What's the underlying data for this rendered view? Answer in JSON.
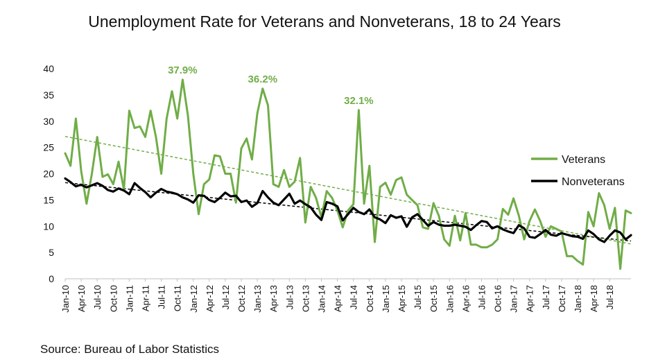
{
  "chart_data": {
    "type": "line",
    "title": "Unemployment Rate for Veterans and Nonveterans, 18 to 24 Years",
    "source": "Source: Bureau of Labor Statistics",
    "xlabel": "",
    "ylabel": "",
    "ylim": [
      0,
      40
    ],
    "yticks": [
      "0",
      "5",
      "10",
      "15",
      "20",
      "25",
      "30",
      "35",
      "40"
    ],
    "xtick_labels": [
      "Jan-10",
      "Apr-10",
      "Jul-10",
      "Oct-10",
      "Jan-11",
      "Apr-11",
      "Jul-11",
      "Oct-11",
      "Jan-12",
      "Apr-12",
      "Jul-12",
      "Oct-12",
      "Jan-13",
      "Apr-13",
      "Jul-13",
      "Oct-13",
      "Jan-14",
      "Apr-14",
      "Jul-14",
      "Oct-14",
      "Jan-15",
      "Apr-15",
      "Jul-15",
      "Oct-15",
      "Jan-16",
      "Apr-16",
      "Jul-16",
      "Oct-16",
      "Jan-17",
      "Apr-17",
      "Jul-17",
      "Oct-17",
      "Jan-18",
      "Apr-18",
      "Jul-18"
    ],
    "x_start": "Jan-10",
    "x_end": "Sep-18",
    "grid": false,
    "legend_position": "right",
    "series": [
      {
        "name": "Veterans",
        "color": "#70ad47",
        "trendline": true,
        "values": [
          23.9,
          21.5,
          30.5,
          20.5,
          14.3,
          20.0,
          27.0,
          19.4,
          19.9,
          18.0,
          22.3,
          17.0,
          32.0,
          28.7,
          29.0,
          27.0,
          32.0,
          27.0,
          20.0,
          30.5,
          35.7,
          30.5,
          37.9,
          31.0,
          20.0,
          12.3,
          18.0,
          18.9,
          23.5,
          23.3,
          20.0,
          20.0,
          14.5,
          24.8,
          26.7,
          22.7,
          31.5,
          36.2,
          33.0,
          18.0,
          17.5,
          20.7,
          17.5,
          18.5,
          23.0,
          10.7,
          17.5,
          15.4,
          11.7,
          16.7,
          15.4,
          13.0,
          9.8,
          13.0,
          14.2,
          32.1,
          14.3,
          21.5,
          7.0,
          17.5,
          18.3,
          16.0,
          18.8,
          19.3,
          16.0,
          15.0,
          14.0,
          9.8,
          9.5,
          14.4,
          12.0,
          7.5,
          6.3,
          12.0,
          7.3,
          12.5,
          6.5,
          6.5,
          6.0,
          6.0,
          6.5,
          7.5,
          13.3,
          12.2,
          15.3,
          12.0,
          7.5,
          11.0,
          13.2,
          11.0,
          8.0,
          10.0,
          9.5,
          9.0,
          4.3,
          4.3,
          3.4,
          2.7,
          12.7,
          10.0,
          16.3,
          14.0,
          9.5,
          13.5,
          1.9,
          13.0,
          12.5
        ]
      },
      {
        "name": "Nonveterans",
        "color": "#000000",
        "trendline": true,
        "values": [
          19.1,
          18.4,
          17.6,
          17.9,
          17.4,
          17.8,
          18.2,
          17.7,
          16.9,
          16.6,
          17.2,
          16.8,
          16.1,
          18.2,
          17.3,
          16.5,
          15.5,
          16.4,
          17.1,
          16.6,
          16.4,
          16.1,
          15.5,
          15.1,
          14.5,
          15.9,
          15.8,
          15.0,
          14.6,
          15.4,
          16.4,
          15.7,
          15.8,
          14.6,
          14.9,
          13.7,
          14.4,
          16.7,
          15.5,
          14.5,
          14.0,
          15.1,
          16.2,
          14.3,
          14.9,
          14.2,
          13.6,
          12.2,
          11.2,
          14.6,
          14.3,
          13.8,
          11.1,
          12.3,
          13.5,
          12.7,
          12.3,
          13.2,
          11.7,
          11.3,
          10.6,
          12.1,
          11.6,
          11.9,
          9.9,
          11.7,
          12.3,
          11.2,
          10.1,
          10.8,
          10.3,
          10.1,
          10.1,
          10.3,
          10.1,
          9.9,
          9.3,
          10.2,
          11.0,
          10.8,
          9.6,
          10.0,
          9.4,
          9.0,
          8.7,
          10.2,
          9.6,
          8.0,
          7.8,
          8.5,
          9.3,
          8.4,
          8.2,
          8.7,
          8.4,
          8.1,
          8.0,
          7.6,
          9.2,
          8.5,
          7.5,
          7.0,
          8.2,
          9.2,
          8.8,
          7.5,
          8.3
        ]
      }
    ],
    "annotations": [
      {
        "text": "37.9%",
        "color": "#70ad47",
        "series": "Veterans",
        "month": "Nov-11",
        "value": 37.9
      },
      {
        "text": "36.2%",
        "color": "#70ad47",
        "series": "Veterans",
        "month": "Feb-13",
        "value": 36.2
      },
      {
        "text": "32.1%",
        "color": "#70ad47",
        "series": "Veterans",
        "month": "Aug-14",
        "value": 32.1
      }
    ]
  }
}
